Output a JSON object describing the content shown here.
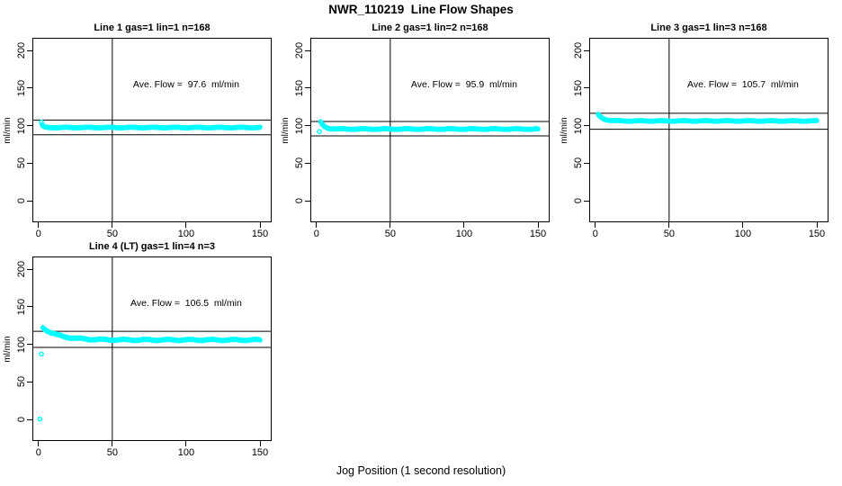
{
  "figure": {
    "title": "NWR_110219  Line Flow Shapes",
    "xlabel": "Jog Position (1 second resolution)",
    "background": "#ffffff",
    "axis_color": "#000000",
    "point_color": "#00ffff"
  },
  "chart_data": [
    {
      "type": "scatter",
      "title": "Line 1 gas=1 lin=1 n=168",
      "ylabel": "ml/min",
      "x_ticks": [
        0,
        50,
        100,
        150
      ],
      "y_ticks": [
        0,
        50,
        100,
        150,
        200
      ],
      "xlim": [
        -3.5,
        157.3
      ],
      "ylim": [
        -27.5,
        215.6
      ],
      "vline_x": 50,
      "ave_flow": 97.6,
      "hlines": [
        107.4,
        87.8
      ],
      "annotation": {
        "label": "Ave. Flow =  ",
        "value": "97.6",
        "unit": "  ml/min",
        "x": 100,
        "y": 155
      },
      "series": {
        "name": "line1-flow",
        "color": "#00ffff",
        "marker": "open-circle",
        "x_start": 2,
        "x_end": 150,
        "start_value": 104,
        "settle_value": 97.4,
        "decay_tau": 0.8,
        "noise": 0.7,
        "extra_points": []
      }
    },
    {
      "type": "scatter",
      "title": "Line 2 gas=1 lin=2 n=168",
      "ylabel": "ml/min",
      "x_ticks": [
        0,
        50,
        100,
        150
      ],
      "y_ticks": [
        0,
        50,
        100,
        150,
        200
      ],
      "xlim": [
        -3.5,
        157.3
      ],
      "ylim": [
        -27.5,
        215.6
      ],
      "vline_x": 50,
      "ave_flow": 95.9,
      "hlines": [
        105.5,
        86.3
      ],
      "annotation": {
        "label": "Ave. Flow =  ",
        "value": "95.9",
        "unit": "  ml/min",
        "x": 100,
        "y": 155
      },
      "series": {
        "name": "line2-flow",
        "color": "#00ffff",
        "marker": "open-circle",
        "x_start": 3,
        "x_end": 150,
        "start_value": 104.5,
        "settle_value": 95.4,
        "decay_tau": 2.5,
        "noise": 0.7,
        "extra_points": [
          [
            2,
            92
          ]
        ]
      }
    },
    {
      "type": "scatter",
      "title": "Line 3 gas=1 lin=3 n=168",
      "ylabel": "ml/min",
      "x_ticks": [
        0,
        50,
        100,
        150
      ],
      "y_ticks": [
        0,
        50,
        100,
        150,
        200
      ],
      "xlim": [
        -3.5,
        157.3
      ],
      "ylim": [
        -27.5,
        215.6
      ],
      "vline_x": 50,
      "ave_flow": 105.7,
      "hlines": [
        116.3,
        95.1
      ],
      "annotation": {
        "label": "Ave. Flow =  ",
        "value": "105.7",
        "unit": "  ml/min",
        "x": 100,
        "y": 155
      },
      "series": {
        "name": "line3-flow",
        "color": "#00ffff",
        "marker": "open-circle",
        "x_start": 2,
        "x_end": 150,
        "start_value": 114.5,
        "settle_value": 106.2,
        "decay_tau": 3.5,
        "noise": 0.7,
        "extra_points": []
      }
    },
    {
      "type": "scatter",
      "title": "Line 4 (LT) gas=1 lin=4 n=3",
      "ylabel": "ml/min",
      "x_ticks": [
        0,
        50,
        100,
        150
      ],
      "y_ticks": [
        0,
        50,
        100,
        150,
        200
      ],
      "xlim": [
        -3.5,
        157.3
      ],
      "ylim": [
        -27.5,
        215.6
      ],
      "vline_x": 50,
      "ave_flow": 106.5,
      "hlines": [
        117.2,
        95.9
      ],
      "annotation": {
        "label": "Ave. Flow =  ",
        "value": "106.5",
        "unit": "  ml/min",
        "x": 100,
        "y": 155
      },
      "series": {
        "name": "line4-flow",
        "color": "#00ffff",
        "marker": "open-circle",
        "x_start": 3,
        "x_end": 150,
        "start_value": 122,
        "settle_value": 105.8,
        "decay_tau": 11,
        "noise": 1.2,
        "extra_points": [
          [
            1,
            0.5
          ],
          [
            2,
            87
          ]
        ]
      }
    }
  ]
}
